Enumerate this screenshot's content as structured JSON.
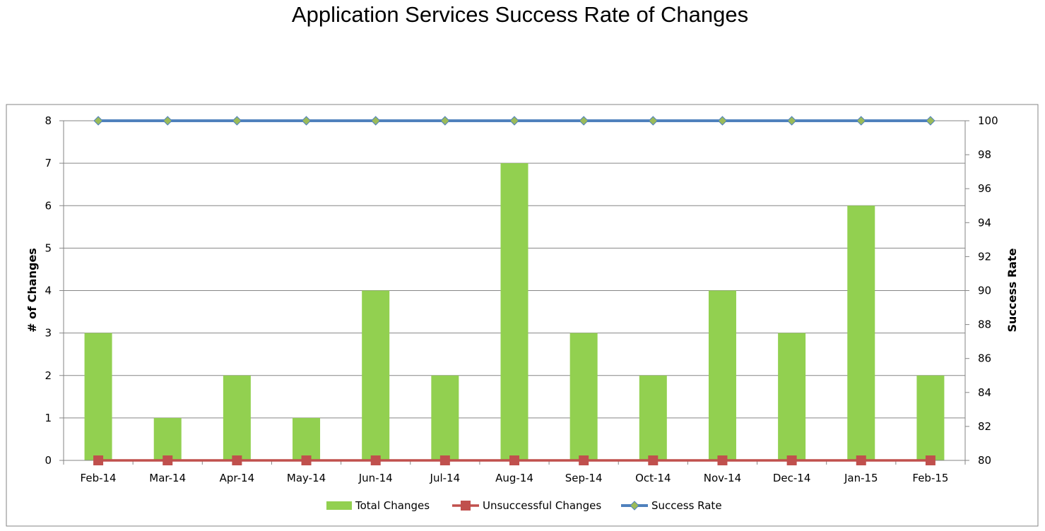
{
  "chart_data": {
    "type": "bar",
    "title": "Application Services Success Rate of Changes",
    "categories": [
      "Feb-14",
      "Mar-14",
      "Apr-14",
      "May-14",
      "Jun-14",
      "Jul-14",
      "Aug-14",
      "Sep-14",
      "Oct-14",
      "Nov-14",
      "Dec-14",
      "Jan-15",
      "Feb-15"
    ],
    "ylabel": "# of Changes",
    "y2label": "Success Rate",
    "ylim": [
      0,
      8
    ],
    "y2lim": [
      80,
      100
    ],
    "y_ticks": [
      "0",
      "1",
      "2",
      "3",
      "4",
      "5",
      "6",
      "7",
      "8"
    ],
    "y2_ticks": [
      "80",
      "82",
      "84",
      "86",
      "88",
      "90",
      "92",
      "94",
      "96",
      "98",
      "100"
    ],
    "grid": true,
    "legend_position": "bottom",
    "series": [
      {
        "name": "Total Changes",
        "type": "bar",
        "axis": "left",
        "color": "#92d050",
        "values": [
          3,
          1,
          2,
          1,
          4,
          2,
          7,
          3,
          2,
          4,
          3,
          6,
          2
        ]
      },
      {
        "name": "Unsuccessful Changes",
        "type": "line",
        "axis": "left",
        "color": "#c0504d",
        "marker": "square",
        "values": [
          0,
          0,
          0,
          0,
          0,
          0,
          0,
          0,
          0,
          0,
          0,
          0,
          0
        ]
      },
      {
        "name": "Success Rate",
        "type": "line",
        "axis": "right",
        "color": "#4f81bd",
        "marker_color": "#9bbb59",
        "marker": "diamond",
        "values": [
          100,
          100,
          100,
          100,
          100,
          100,
          100,
          100,
          100,
          100,
          100,
          100,
          100
        ]
      }
    ]
  }
}
